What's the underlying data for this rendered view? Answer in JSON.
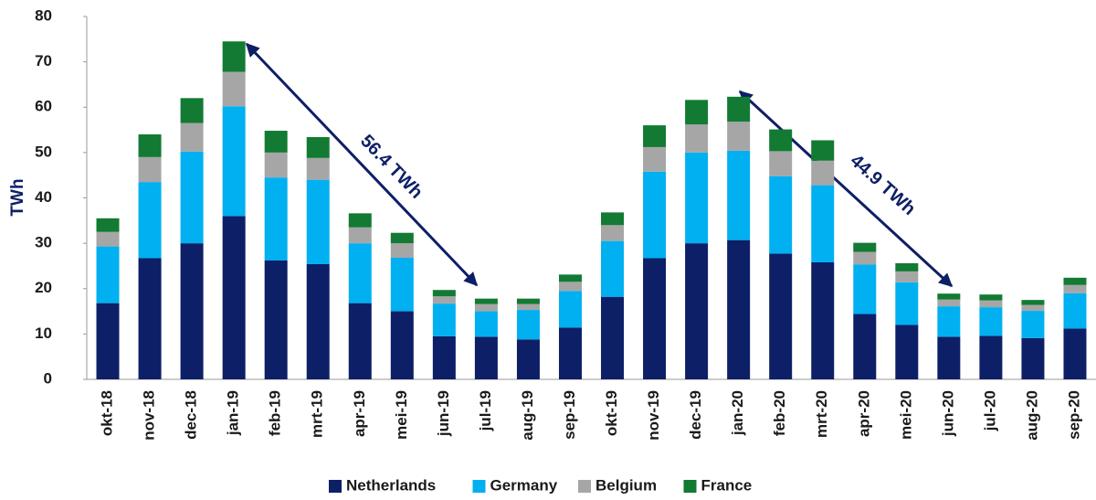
{
  "chart_data": {
    "type": "stacked_bar",
    "y_label": "TWh",
    "categories": [
      "okt-18",
      "nov-18",
      "dec-18",
      "jan-19",
      "feb-19",
      "mrt-19",
      "apr-19",
      "mei-19",
      "jun-19",
      "jul-19",
      "aug-19",
      "sep-19",
      "okt-19",
      "nov-19",
      "dec-19",
      "jan-20",
      "feb-20",
      "mrt-20",
      "apr-20",
      "mei-20",
      "jun-20",
      "jul-20",
      "aug-20",
      "sep-20"
    ],
    "series": [
      {
        "name": "Netherlands",
        "color": "#0d1f66",
        "values": [
          16.8,
          26.7,
          30,
          36,
          26.2,
          25.4,
          16.8,
          15,
          9.5,
          9.4,
          8.8,
          11.4,
          18.2,
          26.7,
          30,
          30.7,
          27.7,
          25.8,
          14.4,
          12,
          9.4,
          9.6,
          9.1,
          11.2
        ]
      },
      {
        "name": "Germany",
        "color": "#00b0f0",
        "values": [
          12.5,
          16.8,
          20.2,
          24.2,
          18.3,
          18.6,
          13.2,
          11.8,
          7.2,
          5.6,
          6.5,
          8.1,
          12.3,
          19.1,
          20,
          19.7,
          17.1,
          17,
          10.9,
          9.4,
          6.7,
          6.3,
          6,
          7.8
        ]
      },
      {
        "name": "Belgium",
        "color": "#a6a6a6",
        "values": [
          3.2,
          5.5,
          6.3,
          7.6,
          5.5,
          4.8,
          3.5,
          3.2,
          1.6,
          1.6,
          1.3,
          2,
          3.5,
          5.4,
          6.2,
          6.4,
          5.5,
          5.4,
          2.8,
          2.4,
          1.5,
          1.5,
          1.3,
          1.8
        ]
      },
      {
        "name": "France",
        "color": "#127a33",
        "values": [
          3,
          5,
          5.5,
          6.7,
          4.8,
          4.6,
          3.1,
          2.3,
          1.4,
          1.2,
          1.2,
          1.6,
          2.8,
          4.8,
          5.4,
          5.5,
          4.8,
          4.5,
          2,
          1.8,
          1.3,
          1.3,
          1.1,
          1.6
        ]
      }
    ],
    "ylim": [
      0,
      80
    ],
    "yticks": [
      0,
      10,
      20,
      30,
      40,
      50,
      60,
      70,
      80
    ],
    "annotations": [
      "56.4 TWh",
      "44.9 TWh"
    ],
    "legend": "bottom"
  }
}
